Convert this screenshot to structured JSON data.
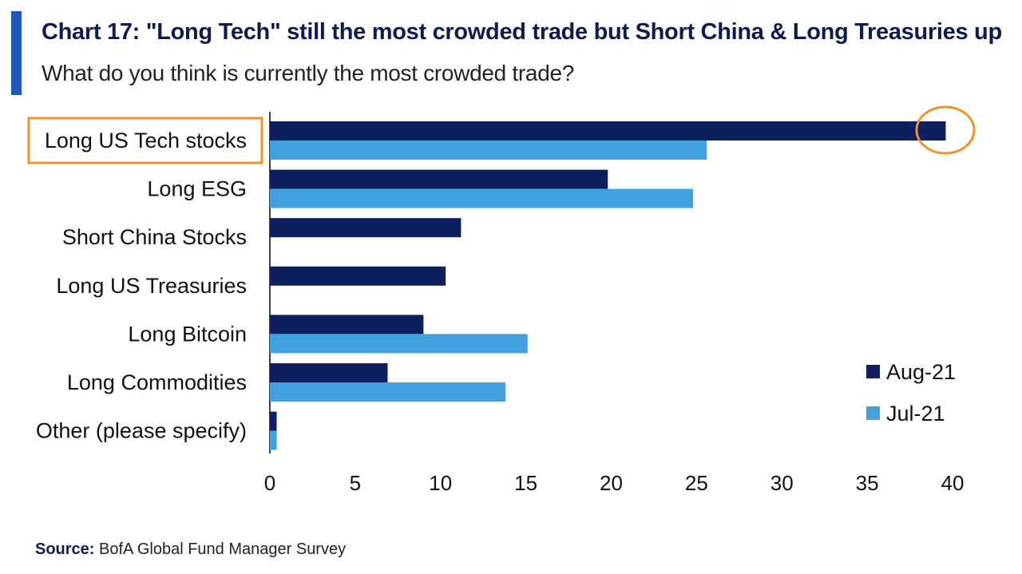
{
  "header": {
    "title": "Chart 17: \"Long Tech\" still the most crowded trade but Short China & Long Treasuries up",
    "subtitle": "What do you think is currently the most crowded trade?"
  },
  "footer": {
    "source_label": "Source:",
    "source_text": "BofA Global Fund Manager Survey"
  },
  "colors": {
    "accent": "#1f56c0",
    "aug": "#0d1f5e",
    "jul": "#41a0de",
    "highlight": "#f0932b"
  },
  "chart_data": {
    "type": "bar",
    "orientation": "horizontal",
    "title": "Chart 17: \"Long Tech\" still the most crowded trade but Short China & Long Treasuries up",
    "subtitle": "What do you think is currently the most crowded trade?",
    "categories": [
      "Long US Tech stocks",
      "Long ESG",
      "Short China Stocks",
      "Long US Treasuries",
      "Long Bitcoin",
      "Long Commodities",
      "Other (please specify)"
    ],
    "series": [
      {
        "name": "Aug-21",
        "values": [
          39.6,
          19.8,
          11.2,
          10.3,
          9.0,
          6.9,
          0.4
        ]
      },
      {
        "name": "Jul-21",
        "values": [
          25.6,
          24.8,
          0,
          0,
          15.1,
          13.8,
          0.4
        ]
      }
    ],
    "xlim": [
      0,
      40
    ],
    "xticks": [
      "0",
      "5",
      "10",
      "15",
      "20",
      "25",
      "30",
      "35",
      "40"
    ],
    "grid": false,
    "legend": "right",
    "highlight_category": "Long US Tech stocks"
  }
}
